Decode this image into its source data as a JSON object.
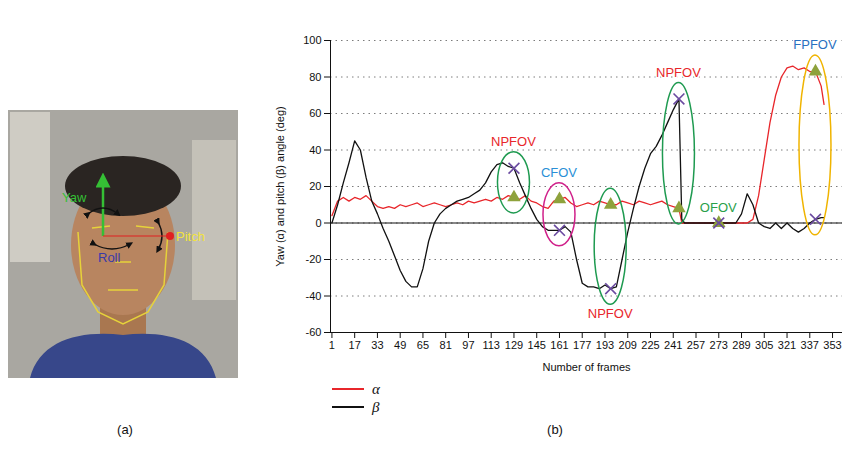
{
  "photo_panel": {
    "caption": "(a)",
    "labels": [
      {
        "text": "Yaw",
        "color": "#35c035"
      },
      {
        "text": "Pitch",
        "color": "#f2e33a"
      },
      {
        "text": "Roll",
        "color": "#3b3ba8"
      }
    ]
  },
  "chart_data": {
    "type": "line",
    "caption": "(b)",
    "x_label": "Number of frames",
    "y_label": "Yaw (α) and pitch (β) angle (deg)",
    "x": [
      1,
      5,
      9,
      13,
      17,
      21,
      25,
      29,
      33,
      37,
      41,
      45,
      49,
      53,
      57,
      61,
      65,
      69,
      73,
      77,
      81,
      85,
      89,
      93,
      97,
      101,
      105,
      109,
      113,
      117,
      121,
      125,
      129,
      133,
      137,
      141,
      145,
      149,
      153,
      157,
      161,
      165,
      169,
      173,
      177,
      181,
      185,
      189,
      193,
      197,
      201,
      205,
      209,
      213,
      217,
      221,
      225,
      229,
      233,
      237,
      241,
      245,
      247,
      249,
      253,
      257,
      261,
      265,
      269,
      273,
      277,
      281,
      285,
      289,
      293,
      297,
      301,
      305,
      309,
      313,
      317,
      321,
      325,
      329,
      333,
      337,
      341,
      345,
      347
    ],
    "series": [
      {
        "name": "α",
        "color": "#e8262b",
        "values": [
          4,
          12,
          14,
          12,
          14,
          13,
          15,
          12,
          9,
          8,
          9,
          8,
          10,
          9,
          10,
          11,
          9,
          10,
          11,
          10,
          9,
          10,
          11,
          10,
          12,
          11,
          12,
          13,
          12,
          14,
          13,
          15,
          14,
          13,
          15,
          12,
          11,
          9,
          8,
          12,
          13,
          14,
          11,
          9,
          10,
          11,
          10,
          12,
          11,
          10,
          10,
          12,
          11,
          10,
          12,
          11,
          10,
          11,
          12,
          10,
          9,
          8,
          0,
          0,
          0,
          0,
          0,
          0,
          0,
          0,
          0,
          0,
          0,
          0,
          0,
          2,
          15,
          35,
          55,
          70,
          80,
          85,
          86,
          84,
          85,
          83,
          83,
          75,
          65
        ]
      },
      {
        "name": "β",
        "color": "#111111",
        "values": [
          0,
          10,
          22,
          33,
          45,
          40,
          25,
          12,
          5,
          -3,
          -10,
          -18,
          -26,
          -32,
          -35,
          -35,
          -25,
          -10,
          0,
          5,
          8,
          10,
          12,
          13,
          14,
          16,
          18,
          22,
          28,
          32,
          33,
          31,
          30,
          22,
          15,
          8,
          2,
          -2,
          -4,
          -4,
          -4,
          -2,
          -5,
          -20,
          -33,
          -35,
          -35,
          -36,
          -34,
          -36,
          -35,
          -20,
          -5,
          8,
          20,
          30,
          38,
          42,
          48,
          55,
          62,
          68,
          2,
          0,
          0,
          0,
          0,
          0,
          0,
          0,
          0,
          0,
          0,
          5,
          16,
          10,
          0,
          -2,
          -3,
          0,
          -3,
          0,
          -3,
          -5,
          -3,
          0,
          2,
          3,
          3
        ]
      }
    ],
    "xlim": [
      0,
      360
    ],
    "xticks": [
      1,
      17,
      33,
      49,
      65,
      81,
      97,
      113,
      129,
      145,
      161,
      177,
      193,
      209,
      225,
      241,
      257,
      273,
      289,
      305,
      321,
      337,
      353
    ],
    "ylim": [
      -60,
      100
    ],
    "yticks": [
      -60,
      -40,
      -20,
      0,
      20,
      40,
      60,
      80,
      100
    ],
    "grid": true,
    "legend": "bottom-left",
    "markers": [
      {
        "series": "α",
        "marker": "triangle",
        "color": "#8ea23c"
      },
      {
        "series": "β",
        "marker": "x",
        "color": "#6a4aa0"
      }
    ],
    "annotations": [
      {
        "text": "NPFOV",
        "color": "#e8262b",
        "frame": 129,
        "values": [
          14,
          30
        ],
        "ellipse_color": "#1e9a50"
      },
      {
        "text": "CFOV",
        "color": "#2a8fd6",
        "frame": 161,
        "values": [
          13,
          -4
        ],
        "ellipse_color": "#d0208a"
      },
      {
        "text": "NPFOV",
        "color": "#e8262b",
        "frame": 197,
        "values": [
          10,
          -36
        ],
        "ellipse_color": "#1e9a50"
      },
      {
        "text": "NPFOV",
        "color": "#e8262b",
        "frame": 245,
        "values": [
          8,
          68
        ],
        "ellipse_color": "#1e9a50"
      },
      {
        "text": "OFOV",
        "color": "#2aa04a",
        "frame": 273,
        "values": [
          0,
          0
        ]
      },
      {
        "text": "FPFOV",
        "color": "#2a70c0",
        "frame": 341,
        "values": [
          83,
          2
        ],
        "ellipse_color": "#f0b400"
      }
    ]
  }
}
